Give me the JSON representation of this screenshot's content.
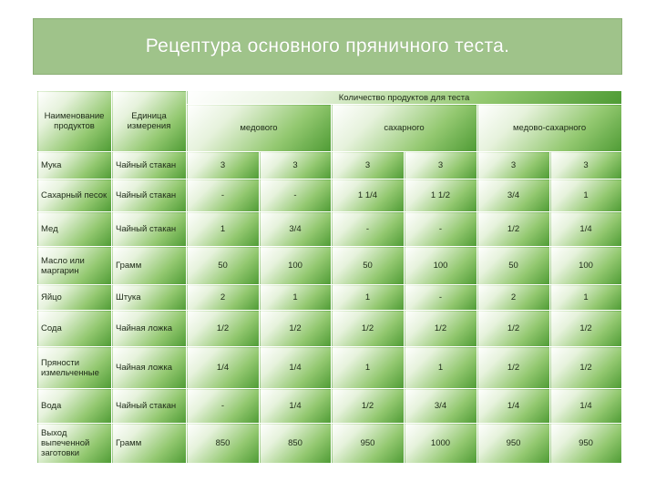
{
  "title": "Рецептура основного пряничного теста.",
  "header": {
    "col_name": "Наименование продуктов",
    "col_unit": "Единица измерения",
    "group": "Количество продуктов для теста",
    "subgroups": [
      "медового",
      "сахарного",
      "медово-сахарного"
    ]
  },
  "rows": [
    {
      "name": "Мука",
      "unit": "Чайный стакан",
      "v": [
        "3",
        "3",
        "3",
        "3",
        "3",
        "3"
      ]
    },
    {
      "name": "Сахарный песок",
      "unit": "Чайный стакан",
      "v": [
        "-",
        "-",
        "1 1/4",
        "1 1/2",
        "3/4",
        "1"
      ]
    },
    {
      "name": "Мед",
      "unit": "Чайный стакан",
      "v": [
        "1",
        "3/4",
        "-",
        "-",
        "1/2",
        "1/4"
      ]
    },
    {
      "name": "Масло или маргарин",
      "unit": "Грамм",
      "v": [
        "50",
        "100",
        "50",
        "100",
        "50",
        "100"
      ]
    },
    {
      "name": "Яйцо",
      "unit": "Штука",
      "v": [
        "2",
        "1",
        "1",
        "-",
        "2",
        "1"
      ]
    },
    {
      "name": "Сода",
      "unit": "Чайная ложка",
      "v": [
        "1/2",
        "1/2",
        "1/2",
        "1/2",
        "1/2",
        "1/2"
      ]
    },
    {
      "name": "Пряности измельченные",
      "unit": "Чайная ложка",
      "v": [
        "1/4",
        "1/4",
        "1",
        "1",
        "1/2",
        "1/2"
      ]
    },
    {
      "name": "Вода",
      "unit": "Чайный стакан",
      "v": [
        "-",
        "1/4",
        "1/2",
        "3/4",
        "1/4",
        "1/4"
      ]
    },
    {
      "name": "Выход выпеченной заготовки",
      "unit": "Грамм",
      "v": [
        "850",
        "850",
        "950",
        "1000",
        "950",
        "950"
      ]
    }
  ]
}
